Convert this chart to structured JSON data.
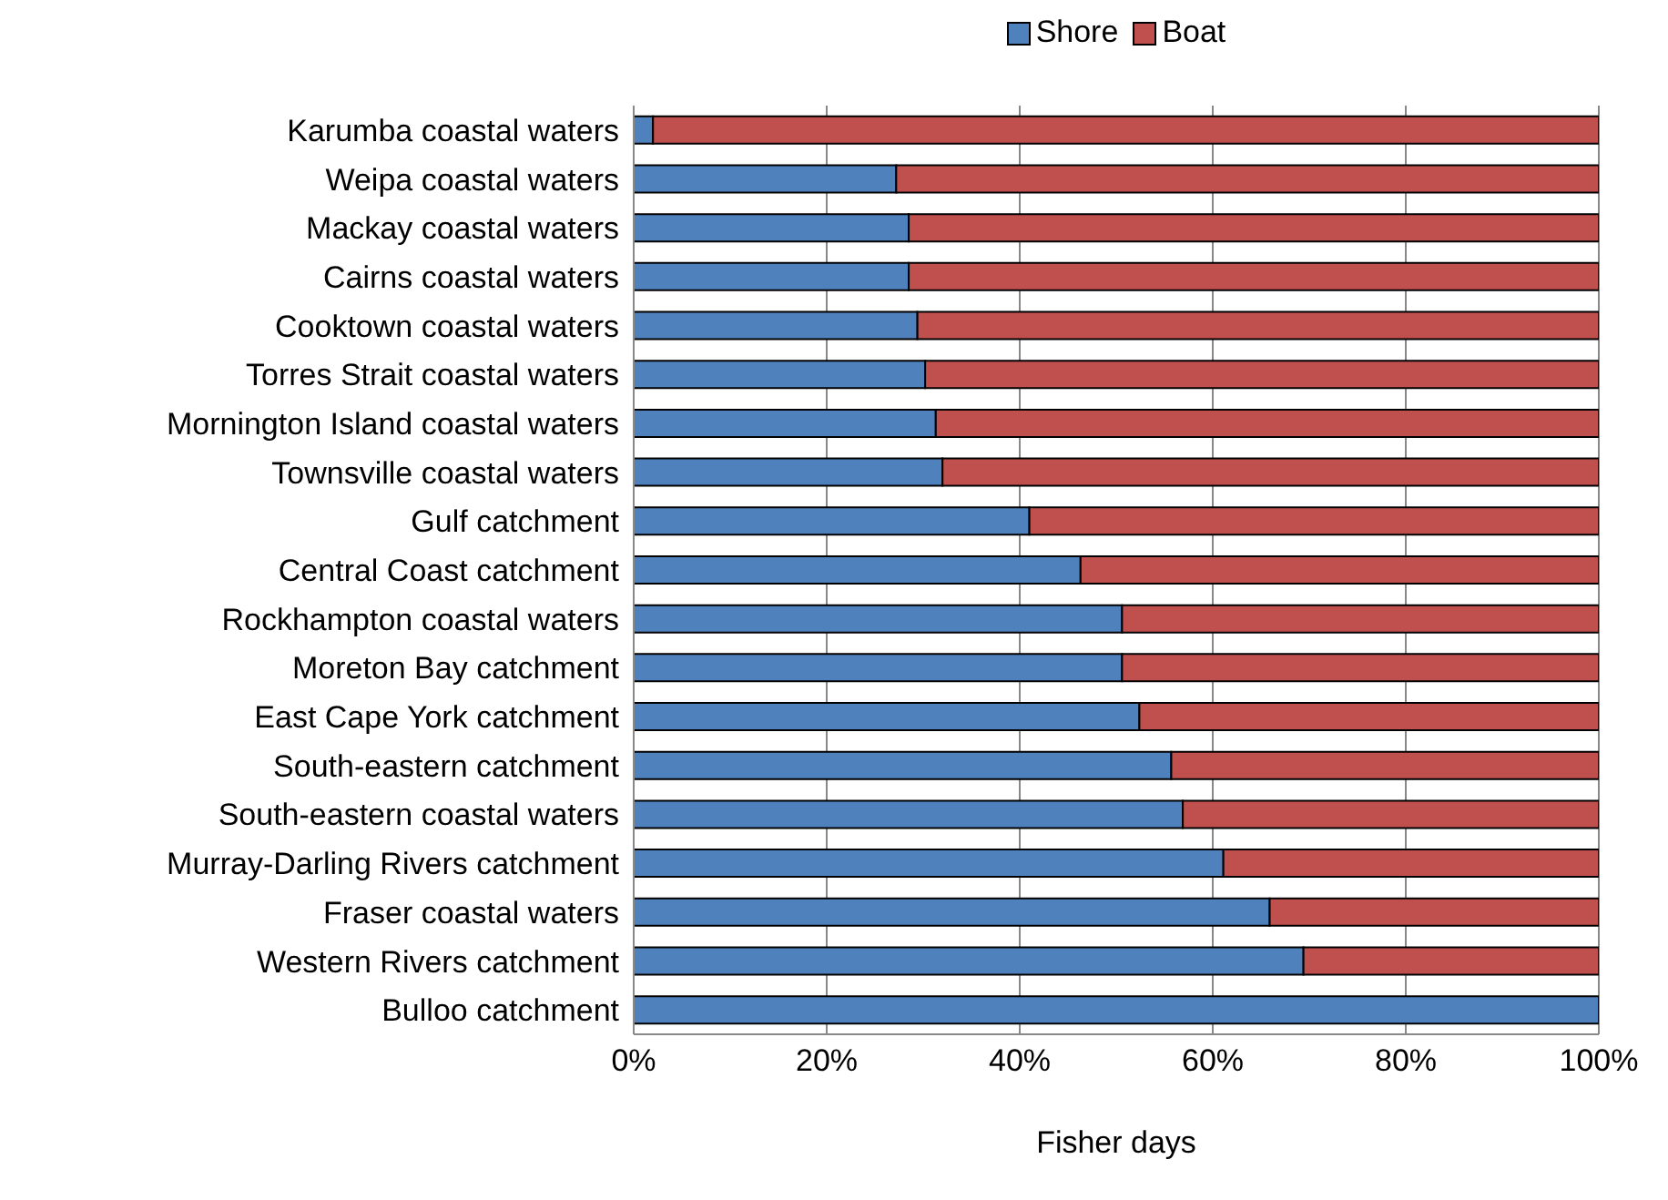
{
  "chart_data": {
    "type": "bar",
    "orientation": "horizontal",
    "stacked": true,
    "xlabel": "Fisher days",
    "categories": [
      "Karumba coastal waters",
      "Weipa coastal waters",
      "Mackay coastal waters",
      "Cairns coastal waters",
      "Cooktown coastal waters",
      "Torres Strait coastal waters",
      "Mornington Island coastal waters",
      "Townsville coastal waters",
      "Gulf catchment",
      "Central Coast catchment",
      "Rockhampton coastal waters",
      "Moreton Bay catchment",
      "East Cape York catchment",
      "South-eastern catchment",
      "South-eastern coastal waters",
      "Murray-Darling Rivers catchment",
      "Fraser coastal waters",
      "Western Rivers catchment",
      "Bulloo catchment"
    ],
    "series": [
      {
        "name": "Shore",
        "color": "#4f81bd",
        "values": [
          2,
          27.2,
          28.5,
          28.5,
          29.4,
          30.2,
          31.3,
          32,
          41,
          46.3,
          50.6,
          50.6,
          52.4,
          55.7,
          56.9,
          61.1,
          65.9,
          69.4,
          100
        ]
      },
      {
        "name": "Boat",
        "color": "#c0504d",
        "values": [
          98,
          72.8,
          71.5,
          71.5,
          70.6,
          69.8,
          68.7,
          68,
          59,
          53.7,
          49.4,
          49.4,
          47.6,
          44.3,
          43.1,
          38.9,
          34.1,
          30.6,
          0
        ]
      }
    ],
    "xlim": [
      0,
      100
    ],
    "xticks": [
      {
        "value": 0,
        "label": "0%"
      },
      {
        "value": 20,
        "label": "20%"
      },
      {
        "value": 40,
        "label": "40%"
      },
      {
        "value": 60,
        "label": "60%"
      },
      {
        "value": 80,
        "label": "80%"
      },
      {
        "value": 100,
        "label": "100%"
      }
    ],
    "grid": "x",
    "legend": "top"
  }
}
